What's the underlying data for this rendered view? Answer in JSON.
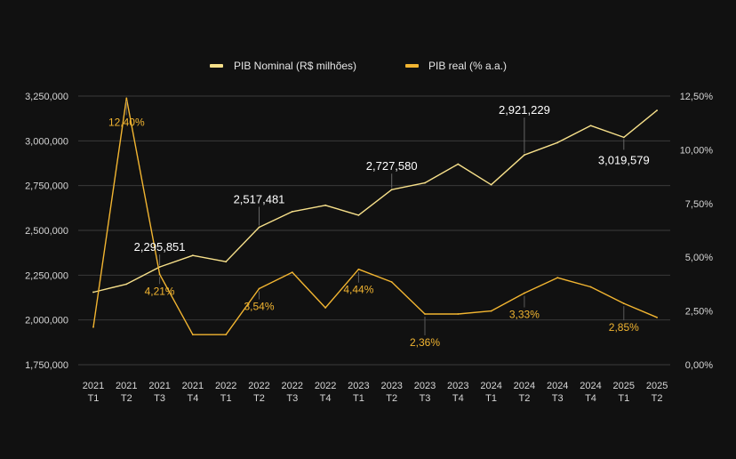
{
  "chart_data": {
    "type": "line",
    "categories": [
      [
        "2021",
        "T1"
      ],
      [
        "2021",
        "T2"
      ],
      [
        "2021",
        "T3"
      ],
      [
        "2021",
        "T4"
      ],
      [
        "2022",
        "T1"
      ],
      [
        "2022",
        "T2"
      ],
      [
        "2022",
        "T3"
      ],
      [
        "2022",
        "T4"
      ],
      [
        "2023",
        "T1"
      ],
      [
        "2023",
        "T2"
      ],
      [
        "2023",
        "T3"
      ],
      [
        "2023",
        "T4"
      ],
      [
        "2024",
        "T1"
      ],
      [
        "2024",
        "T2"
      ],
      [
        "2024",
        "T3"
      ],
      [
        "2024",
        "T4"
      ],
      [
        "2025",
        "T1"
      ],
      [
        "2025",
        "T2"
      ]
    ],
    "series": [
      {
        "name": "PIB Nominal (R$ milhões)",
        "axis": "left",
        "color": "#f7e08a",
        "values": [
          2155000,
          2200000,
          2295851,
          2360000,
          2325000,
          2517481,
          2605000,
          2640000,
          2585000,
          2727580,
          2765000,
          2870000,
          2755000,
          2921229,
          2990000,
          3085000,
          3019579,
          3170000
        ]
      },
      {
        "name": "PIB real (% a.a.)",
        "axis": "right",
        "color": "#f2b531",
        "values": [
          1.75,
          12.4,
          4.21,
          1.4,
          1.4,
          3.54,
          4.3,
          2.65,
          4.44,
          3.85,
          2.36,
          2.36,
          2.5,
          3.33,
          4.05,
          3.62,
          2.85,
          2.2
        ]
      }
    ],
    "annotations_nominal": [
      {
        "index": 2,
        "text": "2,295,851"
      },
      {
        "index": 5,
        "text": "2,517,481"
      },
      {
        "index": 9,
        "text": "2,727,580"
      },
      {
        "index": 13,
        "text": "2,921,229"
      },
      {
        "index": 16,
        "text": "3,019,579"
      }
    ],
    "annotations_real": [
      {
        "index": 1,
        "text": "12,40%"
      },
      {
        "index": 2,
        "text": "4,21%"
      },
      {
        "index": 5,
        "text": "3,54%"
      },
      {
        "index": 8,
        "text": "4,44%"
      },
      {
        "index": 10,
        "text": "2,36%"
      },
      {
        "index": 13,
        "text": "3,33%"
      },
      {
        "index": 16,
        "text": "2,85%"
      }
    ],
    "y_left": {
      "ylim": [
        1750000,
        3250000
      ],
      "ticks": [
        1750000,
        2000000,
        2250000,
        2500000,
        2750000,
        3000000,
        3250000
      ],
      "tick_labels": [
        "1,750,000",
        "2,000,000",
        "2,250,000",
        "2,500,000",
        "2,750,000",
        "3,000,000",
        "3,250,000"
      ]
    },
    "y_right": {
      "ylim": [
        0,
        12.5
      ],
      "ticks": [
        0,
        2.5,
        5,
        7.5,
        10,
        12.5
      ],
      "tick_labels": [
        "0,00%",
        "2,50%",
        "5,00%",
        "7,50%",
        "10,00%",
        "12,50%"
      ]
    },
    "grid": true,
    "legend_position": "top-center",
    "background": "#111111",
    "grid_color": "#3a3a3a"
  }
}
